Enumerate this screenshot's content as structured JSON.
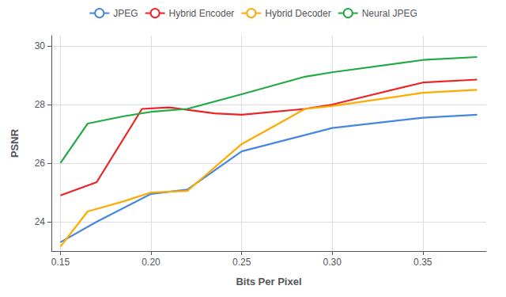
{
  "chart_data": {
    "type": "line",
    "x_label": "Bits Per Pixel",
    "y_label": "PSNR",
    "series": [
      {
        "name": "JPEG",
        "color": "#4488DD",
        "x": [
          0.15,
          0.17,
          0.2,
          0.22,
          0.25,
          0.3,
          0.35,
          0.38
        ],
        "values": [
          23.3,
          24.0,
          24.95,
          25.1,
          26.4,
          27.2,
          27.55,
          27.65
        ]
      },
      {
        "name": "Hybrid Encoder",
        "color": "#EE2222",
        "x": [
          0.15,
          0.17,
          0.195,
          0.21,
          0.235,
          0.25,
          0.285,
          0.3,
          0.35,
          0.38
        ],
        "values": [
          24.9,
          25.35,
          27.85,
          27.9,
          27.7,
          27.65,
          27.85,
          28.0,
          28.75,
          28.85
        ]
      },
      {
        "name": "Hybrid Decoder",
        "color": "#FFAA00",
        "x": [
          0.15,
          0.165,
          0.185,
          0.2,
          0.22,
          0.25,
          0.285,
          0.3,
          0.35,
          0.38
        ],
        "values": [
          23.15,
          24.35,
          24.7,
          25.0,
          25.05,
          26.65,
          27.85,
          27.95,
          28.4,
          28.5
        ]
      },
      {
        "name": "Neural JPEG",
        "color": "#22AA44",
        "x": [
          0.15,
          0.165,
          0.185,
          0.2,
          0.22,
          0.25,
          0.285,
          0.3,
          0.35,
          0.38
        ],
        "values": [
          26.0,
          27.35,
          27.6,
          27.75,
          27.85,
          28.35,
          28.95,
          29.1,
          29.52,
          29.62
        ]
      }
    ],
    "xlim": [
      0.145,
      0.385
    ],
    "ylim": [
      23.0,
      30.35
    ],
    "xticks": [
      0.15,
      {
        "value": 0.2,
        "label": "0.20"
      },
      0.25,
      {
        "value": 0.3,
        "label": "0.30"
      },
      0.35
    ],
    "yticks": [
      24,
      26,
      28,
      30
    ],
    "grid": true,
    "legend": "top"
  }
}
